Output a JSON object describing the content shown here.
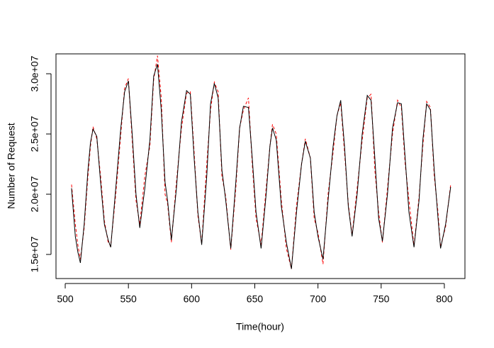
{
  "chart_data": {
    "type": "line",
    "xlabel": "Time(hour)",
    "ylabel": "Number of Request",
    "x": [
      505,
      508,
      510,
      512,
      515,
      518,
      520,
      522,
      525,
      528,
      531,
      534,
      536,
      540,
      544,
      547,
      550,
      553,
      556,
      559,
      563,
      567,
      570,
      573,
      576,
      579,
      581,
      584,
      588,
      592,
      596,
      599,
      602,
      605,
      608,
      612,
      615,
      618,
      621,
      624,
      627,
      631,
      635,
      638,
      641,
      645,
      648,
      651,
      655,
      659,
      662,
      664,
      667,
      671,
      675,
      679,
      683,
      687,
      690,
      694,
      697,
      700,
      704,
      708,
      712,
      715,
      718,
      721,
      724,
      727,
      731,
      735,
      739,
      742,
      745,
      748,
      751,
      755,
      759,
      763,
      766,
      769,
      772,
      776,
      780,
      783,
      786,
      789,
      792,
      795,
      797,
      801,
      805
    ],
    "series": [
      {
        "color": "#000000",
        "linestyle": "solid",
        "values": [
          20500000,
          16500000,
          15200000,
          14300000,
          17500000,
          22000000,
          24300000,
          25400000,
          24800000,
          21000000,
          17500000,
          16200000,
          15600000,
          20500000,
          25500000,
          28500000,
          29400000,
          25000000,
          20000000,
          17200000,
          20500000,
          24500000,
          29800000,
          30800000,
          27000000,
          21000000,
          19500000,
          16200000,
          20500000,
          26000000,
          28600000,
          28300000,
          23000000,
          18500000,
          15800000,
          21500000,
          27500000,
          29200000,
          28000000,
          22000000,
          19500000,
          15500000,
          21000000,
          25500000,
          27300000,
          27200000,
          23000000,
          18500000,
          15500000,
          20000000,
          24000000,
          25500000,
          24500000,
          19000000,
          16000000,
          13800000,
          18500000,
          22500000,
          24400000,
          23000000,
          18500000,
          16500000,
          14600000,
          19500000,
          24000000,
          26500000,
          27800000,
          24000000,
          19000000,
          16500000,
          20000000,
          25000000,
          28200000,
          27800000,
          23000000,
          18000000,
          16100000,
          20000000,
          25500000,
          27600000,
          27500000,
          23000000,
          18500000,
          15600000,
          19500000,
          24500000,
          27500000,
          27000000,
          22000000,
          18000000,
          15500000,
          17500000,
          20600000
        ]
      },
      {
        "color": "#ff0000",
        "linestyle": "dashed",
        "values": [
          20800000,
          17500000,
          15800000,
          14600000,
          17200000,
          21500000,
          24000000,
          25600000,
          24600000,
          21500000,
          17800000,
          16000000,
          15700000,
          20000000,
          25000000,
          28800000,
          29600000,
          24500000,
          19500000,
          17500000,
          21500000,
          24000000,
          29500000,
          31500000,
          28000000,
          20000000,
          19200000,
          16000000,
          21000000,
          25500000,
          28400000,
          28500000,
          23500000,
          18200000,
          15900000,
          22500000,
          27000000,
          29300000,
          28500000,
          21500000,
          19800000,
          15400000,
          20500000,
          25500000,
          27000000,
          28000000,
          22500000,
          18000000,
          15800000,
          20500000,
          24000000,
          25800000,
          25000000,
          19500000,
          15500000,
          13800000,
          19000000,
          22500000,
          24600000,
          23000000,
          18000000,
          16800000,
          14200000,
          20000000,
          23500000,
          26500000,
          27600000,
          23500000,
          19200000,
          16600000,
          20500000,
          24500000,
          28000000,
          28300000,
          22000000,
          18500000,
          16000000,
          20500000,
          25000000,
          27800000,
          27200000,
          22500000,
          19500000,
          15700000,
          19800000,
          24000000,
          27700000,
          27200000,
          21500000,
          18500000,
          15600000,
          17300000,
          20800000
        ]
      }
    ],
    "xlim": [
      492.7,
      816.3
    ],
    "xticks": [
      500,
      550,
      600,
      650,
      700,
      750,
      800
    ],
    "ylim": [
      13000000,
      31650000
    ],
    "yticks": [
      {
        "value": 15000000,
        "label": "1.5e+07"
      },
      {
        "value": 20000000,
        "label": "2.0e+07"
      },
      {
        "value": 25000000,
        "label": "2.5e+07"
      },
      {
        "value": 30000000,
        "label": "3.0e+07"
      }
    ]
  }
}
